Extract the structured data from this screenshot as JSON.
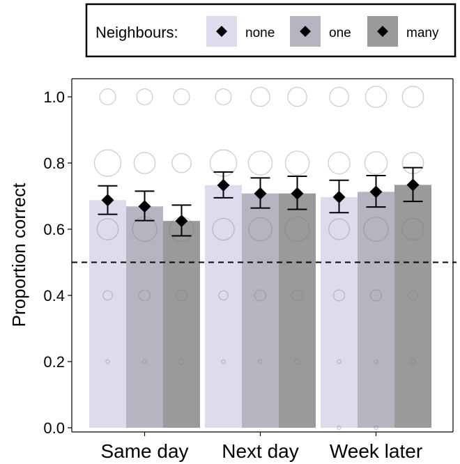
{
  "chart_data": {
    "type": "bar",
    "title": "",
    "xlabel": "",
    "ylabel": "Proportion correct",
    "ylim": [
      0,
      1.05
    ],
    "yticks": [
      0.0,
      0.2,
      0.4,
      0.6,
      0.8,
      1.0
    ],
    "ytick_labels": [
      "0.0",
      "0.2",
      "0.4",
      "0.6",
      "0.8",
      "1.0"
    ],
    "categories": [
      "Same day",
      "Next day",
      "Week later"
    ],
    "legend": {
      "title": "Neighbours:",
      "placement": "top",
      "entries": [
        "none",
        "one",
        "many"
      ]
    },
    "series": [
      {
        "name": "none",
        "color": "#dcdcec",
        "values": [
          0.688,
          0.733,
          0.697
        ],
        "error_low": [
          0.645,
          0.695,
          0.65
        ],
        "error_high": [
          0.731,
          0.773,
          0.748
        ]
      },
      {
        "name": "one",
        "color": "#b5b5c1",
        "values": [
          0.669,
          0.708,
          0.713
        ],
        "error_low": [
          0.626,
          0.664,
          0.667
        ],
        "error_high": [
          0.715,
          0.755,
          0.762
        ]
      },
      {
        "name": "many",
        "color": "#9a9a9c",
        "values": [
          0.625,
          0.708,
          0.734
        ],
        "error_low": [
          0.58,
          0.66,
          0.684
        ],
        "error_high": [
          0.673,
          0.76,
          0.786
        ]
      }
    ],
    "chance_level": 0.5,
    "point_levels": [
      0.0,
      0.2,
      0.4,
      0.6,
      0.8,
      1.0
    ],
    "point_size_relative": [
      [
        [
          0.0,
          0.14,
          0.35,
          0.8,
          1.0,
          0.6
        ],
        [
          0.0,
          0.14,
          0.42,
          0.92,
          0.8,
          0.6
        ],
        [
          0.0,
          0.2,
          0.42,
          0.92,
          0.72,
          0.6
        ]
      ],
      [
        [
          0.0,
          0.14,
          0.35,
          0.82,
          1.0,
          0.6
        ],
        [
          0.0,
          0.14,
          0.42,
          0.88,
          0.9,
          0.72
        ],
        [
          0.0,
          0.2,
          0.42,
          0.92,
          0.9,
          0.72
        ]
      ],
      [
        [
          0.08,
          0.14,
          0.42,
          0.78,
          0.82,
          0.72
        ],
        [
          0.08,
          0.14,
          0.42,
          0.92,
          0.85,
          0.8
        ],
        [
          0.0,
          0.2,
          0.35,
          0.82,
          0.8,
          0.8
        ]
      ]
    ],
    "grid": false
  }
}
